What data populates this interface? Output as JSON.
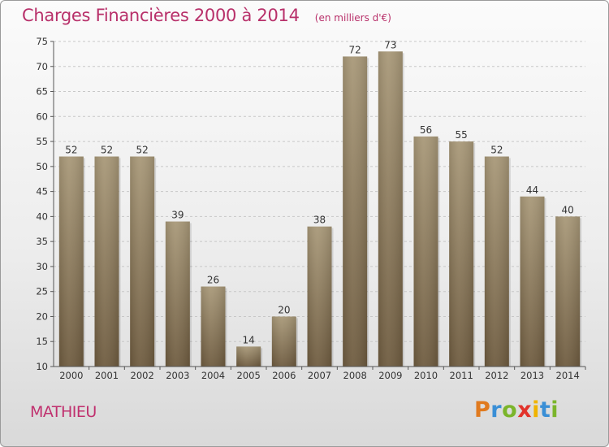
{
  "header": {
    "title": "Charges Financières 2000 à 2014",
    "subtitle": "(en milliers d'€)"
  },
  "footer": {
    "commune": "MATHIEU",
    "logo_text": "Proxiti"
  },
  "colors": {
    "title": "#b8306a",
    "bar_top": "#a89878",
    "bar_bottom": "#6e5b3f",
    "grid": "#c7c7c7",
    "axis": "#555555",
    "logo_letters": [
      "#e07a1f",
      "#3a8fd6",
      "#7bb52b",
      "#e2332b",
      "#f0b400",
      "#3a8fd6",
      "#7bb52b"
    ]
  },
  "chart_data": {
    "type": "bar",
    "title": "Charges Financières 2000 à 2014",
    "subtitle": "(en milliers d'€)",
    "xlabel": "",
    "ylabel": "",
    "categories": [
      "2000",
      "2001",
      "2002",
      "2003",
      "2004",
      "2005",
      "2006",
      "2007",
      "2008",
      "2009",
      "2010",
      "2011",
      "2012",
      "2013",
      "2014"
    ],
    "values": [
      52,
      52,
      52,
      39,
      26,
      14,
      20,
      38,
      72,
      73,
      56,
      55,
      52,
      44,
      40
    ],
    "ylim": [
      10,
      75
    ],
    "yticks": [
      10,
      15,
      20,
      25,
      30,
      35,
      40,
      45,
      50,
      55,
      60,
      65,
      70,
      75
    ],
    "grid": "horizontal dashed",
    "data_labels": true
  }
}
